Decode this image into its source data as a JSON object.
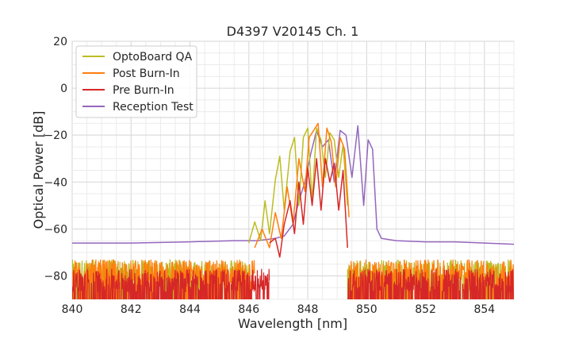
{
  "chart_data": {
    "type": "line",
    "title": "D4397 V20145 Ch. 1",
    "xlabel": "Wavelength [nm]",
    "ylabel": "Optical Power [dB]",
    "xlim": [
      840,
      855
    ],
    "ylim": [
      -90,
      20
    ],
    "xticks": [
      840,
      842,
      844,
      846,
      848,
      850,
      852,
      854
    ],
    "yticks": [
      -80,
      -60,
      -40,
      -20,
      0,
      20
    ],
    "grid": true,
    "legend_position": "top-left",
    "series": [
      {
        "name": "OptoBoard QA",
        "color": "#bcbd22",
        "noise_floor": -78,
        "noise_from": 840,
        "noise_to": 846.5,
        "tail_from": 849.4,
        "tail_to": 855,
        "x": [
          846.0,
          846.2,
          846.4,
          846.55,
          846.7,
          846.9,
          847.05,
          847.2,
          847.4,
          847.55,
          847.7,
          847.85,
          848.0,
          848.15,
          848.3,
          848.45,
          848.6,
          848.75,
          848.9,
          849.05,
          849.2,
          849.35
        ],
        "y": [
          -66,
          -57,
          -65,
          -48,
          -62,
          -39,
          -29,
          -52,
          -27,
          -21,
          -50,
          -21,
          -17,
          -48,
          -17,
          -22,
          -38,
          -19,
          -22,
          -38,
          -24,
          -50
        ]
      },
      {
        "name": "Post Burn-In",
        "color": "#ff7f0e",
        "noise_floor": -78,
        "noise_from": 840,
        "noise_to": 846.4,
        "tail_from": 849.5,
        "tail_to": 855,
        "x": [
          846.2,
          846.45,
          846.7,
          846.9,
          847.1,
          847.3,
          847.5,
          847.7,
          847.9,
          848.05,
          848.2,
          848.35,
          848.5,
          848.65,
          848.8,
          848.95,
          849.1,
          849.25,
          849.4
        ],
        "y": [
          -68,
          -60,
          -68,
          -53,
          -64,
          -42,
          -58,
          -30,
          -44,
          -21,
          -18,
          -15,
          -42,
          -17,
          -23,
          -42,
          -21,
          -26,
          -55
        ]
      },
      {
        "name": "Pre Burn-In",
        "color": "#d62728",
        "noise_floor": -82,
        "noise_from": 840,
        "noise_to": 846.9,
        "tail_from": 849.5,
        "tail_to": 855,
        "x": [
          846.7,
          846.9,
          847.05,
          847.2,
          847.4,
          847.55,
          847.7,
          847.85,
          848.0,
          848.15,
          848.3,
          848.45,
          848.6,
          848.75,
          848.9,
          849.05,
          849.2,
          849.35
        ],
        "y": [
          -66,
          -64,
          -72,
          -58,
          -48,
          -62,
          -40,
          -58,
          -34,
          -50,
          -30,
          -52,
          -30,
          -40,
          -32,
          -52,
          -35,
          -68
        ]
      },
      {
        "name": "Reception Test",
        "color": "#9467bd",
        "noise_floor": null,
        "x": [
          840,
          842,
          844,
          845.5,
          846.3,
          846.9,
          847.2,
          847.5,
          847.7,
          847.9,
          848.1,
          848.3,
          848.5,
          848.7,
          848.9,
          849.1,
          849.3,
          849.5,
          849.7,
          849.9,
          850.05,
          850.2,
          850.35,
          850.5,
          851,
          852,
          853,
          854,
          855
        ],
        "y": [
          -66,
          -66,
          -65.5,
          -65,
          -65,
          -64,
          -63,
          -58,
          -48,
          -40,
          -28,
          -18,
          -25,
          -22,
          -40,
          -18,
          -20,
          -38,
          -16,
          -50,
          -22,
          -26,
          -60,
          -64,
          -65,
          -65.5,
          -65.5,
          -66,
          -66.5
        ]
      }
    ]
  }
}
